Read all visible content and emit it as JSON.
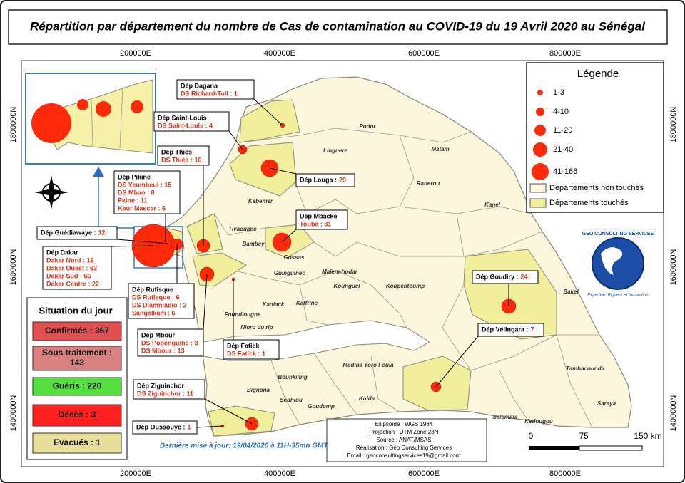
{
  "title": "Répartition par département du nombre de Cas de contamination au COVID-19 du 19 Avril 2020 au Sénégal",
  "axes": {
    "easting": [
      "200000E",
      "400000E",
      "600000E",
      "800000E"
    ],
    "northing": [
      "1800000N",
      "1600000N",
      "1400000N"
    ]
  },
  "legend": {
    "title": "Légende",
    "classes": [
      "1-3",
      "4-10",
      "11-20",
      "21-40",
      "41-166"
    ],
    "areas": [
      "Départements non touchés",
      "Départements touchés"
    ]
  },
  "callouts": [
    {
      "title": "Dép Dagana",
      "lines": [
        "DS Richard-Toll : 1"
      ]
    },
    {
      "title": "Dép Saint-Louis",
      "lines": [
        "DS Saint-Louis : 4"
      ]
    },
    {
      "title": "Dép Thiès",
      "lines": [
        "DS Thiès : 10"
      ]
    },
    {
      "title": "Dép Pikine",
      "lines": [
        "DS Yeumbeul : 15",
        "DS Mbao : 8",
        "Pkine : 11",
        "Keur Massar : 6"
      ]
    },
    {
      "title": "Dép Guédiawaye :",
      "value": "12"
    },
    {
      "title": "Dép Dakar",
      "lines": [
        "Dakar Nord : 16",
        "Dakar Ouest : 62",
        "Dakar Sud : 66",
        "Dakar Centre : 22"
      ]
    },
    {
      "title": "Dép Rufisque",
      "lines": [
        "DS Rufisque : 6",
        "DS Diamniadio : 2",
        "Sangalkam : 6"
      ]
    },
    {
      "title": "Dép Mbour",
      "lines": [
        "DS Popenguine : 3",
        "DS Mbour : 13"
      ]
    },
    {
      "title": "Dép Fatick",
      "lines": [
        "DS Fatick : 1"
      ]
    },
    {
      "title": "Dép Ziguinchor",
      "lines": [
        "DS Ziguinchor : 11"
      ]
    },
    {
      "title": "Dép Oussouye :",
      "value": "1"
    },
    {
      "title": "Dép Louga :",
      "value": "29"
    },
    {
      "title": "Dép Mbacké",
      "lines": [
        "Touba : 31"
      ]
    },
    {
      "title": "Dép Goudiry :",
      "value": "24"
    },
    {
      "title": "Dép Vélingara :",
      "value": "7"
    }
  ],
  "situation": {
    "title": "Situation du jour",
    "items": [
      [
        "Confirmés : 367"
      ],
      [
        "Sous traitement :",
        "143"
      ],
      [
        "Guéris : 220"
      ],
      [
        "Décès : 3"
      ],
      [
        "Evacués : 1"
      ]
    ]
  },
  "departments": [
    "Podor",
    "Matam",
    "Linguere",
    "Ranerou",
    "Kanel",
    "Kebemer",
    "Tivaouane",
    "Bambey",
    "Gossas",
    "Guinguineo",
    "Malem-hodar",
    "Kounguel",
    "Koupentoump",
    "Kaolack",
    "Kaffrine",
    "Foundiougne",
    "Nioro du rip",
    "Bakel",
    "Tambacounda",
    "Bounkiling",
    "Medina Yoro Foula",
    "Kolda",
    "Sedhiou",
    "Goudomp",
    "Bignona",
    "Saraya",
    "Kedougou",
    "Salemata"
  ],
  "info": [
    "Ellipsoïde  :  WGS 1984",
    "Projection  :  UTM Zone 28N",
    "Source  :  ANAT/MSAS",
    "Réalisation  :  Géo Consulting Services",
    "Email  :  geoconsultingservices19@gmail.com"
  ],
  "update": "Dernière mise à jour: 19/04/2020 à 11H-35mn GMT",
  "scale": [
    "0",
    "75",
    "150 km"
  ],
  "logo": {
    "name": "GEO CONSULTING SERVICES",
    "tagline": "Expertise, Rigueur et Innovation"
  }
}
